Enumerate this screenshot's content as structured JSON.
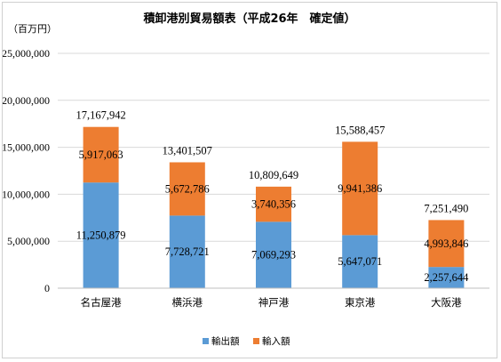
{
  "chart_data": {
    "type": "bar",
    "stacked": true,
    "title": "積卸港別貿易額表（平成26年　確定値）",
    "unit_label": "（百万円）",
    "categories": [
      "名古屋港",
      "横浜港",
      "神戸港",
      "東京港",
      "大阪港"
    ],
    "series": [
      {
        "name": "輸出額",
        "color": "#5B9BD5",
        "values": [
          11250879,
          7728721,
          7069293,
          5647071,
          2257644
        ]
      },
      {
        "name": "輸入額",
        "color": "#ED7D31",
        "values": [
          5917063,
          5672786,
          3740356,
          9941386,
          4993846
        ]
      }
    ],
    "totals": [
      17167942,
      13401507,
      10809649,
      15588457,
      7251490
    ],
    "ylim": [
      0,
      25000000
    ],
    "ytick_values": [
      0,
      5000000,
      10000000,
      15000000,
      20000000,
      25000000
    ],
    "ytick_labels": [
      "0",
      "5,000,000",
      "10,000,000",
      "15,000,000",
      "20,000,000",
      "25,000,000"
    ],
    "grid": true,
    "legend_position": "bottom"
  }
}
